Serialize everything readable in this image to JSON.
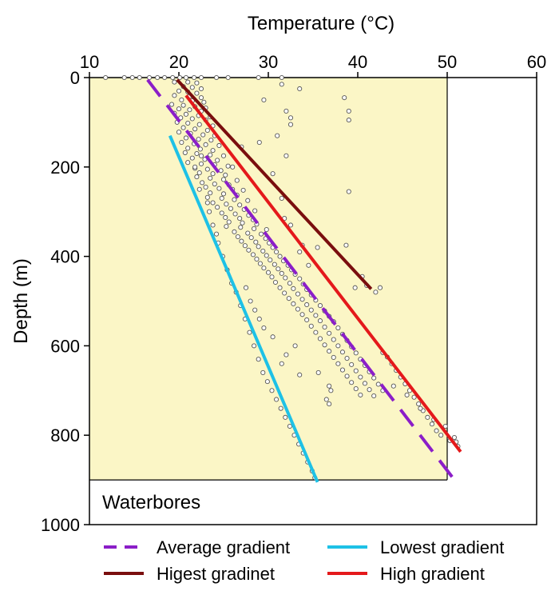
{
  "chart_data": {
    "type": "scatter",
    "title": "",
    "xlabel": "Temperature (°C)",
    "ylabel": "Depth (m)",
    "xlim": [
      10,
      60
    ],
    "ylim": [
      1000,
      0
    ],
    "x_axis_position": "top",
    "y_inverted": true,
    "x_ticks": [
      10,
      20,
      30,
      40,
      50,
      60
    ],
    "y_ticks": [
      0,
      200,
      400,
      600,
      800,
      1000
    ],
    "shaded_region": {
      "x": [
        10,
        50
      ],
      "y": [
        0,
        900
      ],
      "color": "#FBF6C6"
    },
    "annotation": "Waterbores",
    "grid": false,
    "legend_position": "bottom",
    "scatter": {
      "name": "",
      "color": "#555555",
      "points": [
        [
          11.8,
          0
        ],
        [
          13.9,
          0
        ],
        [
          14.8,
          0
        ],
        [
          15.6,
          0
        ],
        [
          16.7,
          0
        ],
        [
          17.6,
          0
        ],
        [
          18.4,
          0
        ],
        [
          19.3,
          0
        ],
        [
          20.1,
          0
        ],
        [
          20.8,
          0
        ],
        [
          21.7,
          0
        ],
        [
          22.5,
          0
        ],
        [
          24.2,
          0
        ],
        [
          25.5,
          0
        ],
        [
          28.9,
          0
        ],
        [
          31.5,
          0
        ],
        [
          19.5,
          10
        ],
        [
          21,
          10
        ],
        [
          22,
          12
        ],
        [
          20.5,
          20
        ],
        [
          21.5,
          22
        ],
        [
          22.5,
          25
        ],
        [
          20,
          30
        ],
        [
          21,
          32
        ],
        [
          22,
          35
        ],
        [
          19.5,
          40
        ],
        [
          21.2,
          42
        ],
        [
          22.5,
          45
        ],
        [
          20.3,
          50
        ],
        [
          21.5,
          52
        ],
        [
          22.8,
          55
        ],
        [
          19.2,
          60
        ],
        [
          20.5,
          62
        ],
        [
          21.8,
          65
        ],
        [
          23,
          68
        ],
        [
          20,
          70
        ],
        [
          21.2,
          72
        ],
        [
          22.5,
          75
        ],
        [
          19.5,
          80
        ],
        [
          20.8,
          82
        ],
        [
          22.2,
          85
        ],
        [
          23.5,
          88
        ],
        [
          20.2,
          90
        ],
        [
          21.5,
          92
        ],
        [
          23,
          95
        ],
        [
          19.8,
          100
        ],
        [
          21,
          102
        ],
        [
          22.3,
          105
        ],
        [
          23.8,
          108
        ],
        [
          20.5,
          112
        ],
        [
          21.8,
          115
        ],
        [
          23.2,
          118
        ],
        [
          20,
          122
        ],
        [
          21.3,
          125
        ],
        [
          22.7,
          128
        ],
        [
          24,
          130
        ],
        [
          20.8,
          135
        ],
        [
          22.2,
          138
        ],
        [
          23.6,
          140
        ],
        [
          20.3,
          145
        ],
        [
          21.7,
          148
        ],
        [
          23,
          150
        ],
        [
          24.5,
          152
        ],
        [
          21,
          158
        ],
        [
          22.4,
          160
        ],
        [
          23.8,
          163
        ],
        [
          20.7,
          168
        ],
        [
          22,
          170
        ],
        [
          23.5,
          173
        ],
        [
          25,
          175
        ],
        [
          21.5,
          180
        ],
        [
          22.9,
          183
        ],
        [
          24.3,
          185
        ],
        [
          21,
          190
        ],
        [
          22.5,
          193
        ],
        [
          24,
          195
        ],
        [
          25.5,
          198
        ],
        [
          21.8,
          203
        ],
        [
          23.2,
          205
        ],
        [
          24.7,
          208
        ],
        [
          22.3,
          213
        ],
        [
          23.8,
          215
        ],
        [
          25.2,
          218
        ],
        [
          22,
          222
        ],
        [
          23.5,
          225
        ],
        [
          25,
          228
        ],
        [
          26.5,
          230
        ],
        [
          22.6,
          235
        ],
        [
          24,
          238
        ],
        [
          25.6,
          240
        ],
        [
          23,
          245
        ],
        [
          24.5,
          248
        ],
        [
          26,
          250
        ],
        [
          27.2,
          252
        ],
        [
          23.5,
          258
        ],
        [
          25,
          260
        ],
        [
          26.5,
          263
        ],
        [
          23.2,
          268
        ],
        [
          24.8,
          270
        ],
        [
          26.2,
          273
        ],
        [
          27.7,
          275
        ],
        [
          23.8,
          280
        ],
        [
          25.3,
          283
        ],
        [
          26.8,
          285
        ],
        [
          24.3,
          290
        ],
        [
          25.8,
          293
        ],
        [
          27.3,
          295
        ],
        [
          28.5,
          298
        ],
        [
          24.8,
          303
        ],
        [
          26.3,
          305
        ],
        [
          27.8,
          308
        ],
        [
          25.2,
          313
        ],
        [
          26.8,
          315
        ],
        [
          28.3,
          318
        ],
        [
          25.6,
          323
        ],
        [
          27.1,
          325
        ],
        [
          28.7,
          328
        ],
        [
          25.3,
          333
        ],
        [
          26.9,
          335
        ],
        [
          28.4,
          338
        ],
        [
          29.8,
          340
        ],
        [
          26.2,
          345
        ],
        [
          27.7,
          348
        ],
        [
          29.2,
          350
        ],
        [
          26.6,
          356
        ],
        [
          28.1,
          358
        ],
        [
          29.7,
          360
        ],
        [
          27,
          366
        ],
        [
          28.6,
          368
        ],
        [
          30.1,
          370
        ],
        [
          27.4,
          376
        ],
        [
          28.9,
          378
        ],
        [
          30.5,
          380
        ],
        [
          27.8,
          386
        ],
        [
          29.4,
          388
        ],
        [
          30.9,
          390
        ],
        [
          28.3,
          396
        ],
        [
          29.8,
          398
        ],
        [
          31.3,
          400
        ],
        [
          28.7,
          406
        ],
        [
          30.2,
          408
        ],
        [
          31.7,
          410
        ],
        [
          29.1,
          416
        ],
        [
          30.7,
          418
        ],
        [
          32.2,
          420
        ],
        [
          29.5,
          426
        ],
        [
          31.1,
          428
        ],
        [
          32.6,
          430
        ],
        [
          30,
          436
        ],
        [
          31.5,
          438
        ],
        [
          33,
          440
        ],
        [
          30.4,
          446
        ],
        [
          31.9,
          448
        ],
        [
          33.5,
          450
        ],
        [
          30.8,
          458
        ],
        [
          32.4,
          460
        ],
        [
          33.9,
          462
        ],
        [
          31.3,
          470
        ],
        [
          32.8,
          472
        ],
        [
          34.3,
          474
        ],
        [
          31.8,
          482
        ],
        [
          33.3,
          484
        ],
        [
          34.8,
          486
        ],
        [
          32.3,
          494
        ],
        [
          33.8,
          496
        ],
        [
          35.3,
          498
        ],
        [
          32.8,
          506
        ],
        [
          34.3,
          508
        ],
        [
          35.8,
          510
        ],
        [
          33.3,
          518
        ],
        [
          34.8,
          520
        ],
        [
          36.3,
          522
        ],
        [
          33.8,
          530
        ],
        [
          35.3,
          532
        ],
        [
          36.8,
          534
        ],
        [
          34.3,
          542
        ],
        [
          35.8,
          544
        ],
        [
          37.3,
          546
        ],
        [
          34.8,
          556
        ],
        [
          36.3,
          558
        ],
        [
          37.8,
          560
        ],
        [
          35.3,
          570
        ],
        [
          36.8,
          572
        ],
        [
          38.3,
          574
        ],
        [
          35.8,
          584
        ],
        [
          37.3,
          586
        ],
        [
          38.8,
          588
        ],
        [
          36.3,
          598
        ],
        [
          37.8,
          600
        ],
        [
          39.3,
          602
        ],
        [
          36.8,
          612
        ],
        [
          38.3,
          614
        ],
        [
          39.8,
          616
        ],
        [
          37.3,
          626
        ],
        [
          38.8,
          628
        ],
        [
          40.3,
          630
        ],
        [
          37.8,
          640
        ],
        [
          39.3,
          642
        ],
        [
          40.8,
          644
        ],
        [
          38.3,
          654
        ],
        [
          39.8,
          656
        ],
        [
          41.3,
          658
        ],
        [
          38.8,
          668
        ],
        [
          40.3,
          670
        ],
        [
          41.8,
          672
        ],
        [
          39.3,
          682
        ],
        [
          40.8,
          684
        ],
        [
          42.3,
          686
        ],
        [
          39.8,
          696
        ],
        [
          41.3,
          698
        ],
        [
          42.8,
          700
        ],
        [
          40.3,
          710
        ],
        [
          41.8,
          712
        ],
        [
          36.5,
          720
        ],
        [
          36.8,
          730
        ],
        [
          33.5,
          665
        ],
        [
          35.6,
          660
        ],
        [
          36.8,
          690
        ],
        [
          37,
          700
        ],
        [
          31.5,
          640
        ],
        [
          32,
          620
        ],
        [
          33,
          600
        ],
        [
          30.5,
          580
        ],
        [
          29.5,
          560
        ],
        [
          29,
          540
        ],
        [
          28.5,
          520
        ],
        [
          28,
          500
        ],
        [
          27.5,
          470
        ],
        [
          31.5,
          15
        ],
        [
          33.5,
          25
        ],
        [
          38.5,
          45
        ],
        [
          29.5,
          50
        ],
        [
          32,
          75
        ],
        [
          39,
          75
        ],
        [
          39,
          95
        ],
        [
          32.5,
          90
        ],
        [
          32.5,
          105
        ],
        [
          31,
          130
        ],
        [
          39,
          255
        ],
        [
          29,
          145
        ],
        [
          27,
          155
        ],
        [
          26,
          200
        ],
        [
          32,
          175
        ],
        [
          30.5,
          215
        ],
        [
          31.5,
          270
        ],
        [
          32.5,
          330
        ],
        [
          31.8,
          315
        ],
        [
          33.8,
          375
        ],
        [
          35.5,
          380
        ],
        [
          33.5,
          390
        ],
        [
          34.5,
          420
        ],
        [
          38.7,
          375
        ],
        [
          40.5,
          445
        ],
        [
          39.7,
          470
        ],
        [
          41,
          465
        ],
        [
          42,
          480
        ],
        [
          42.5,
          470
        ],
        [
          22.5,
          175
        ],
        [
          22.3,
          250
        ],
        [
          21.8,
          200
        ],
        [
          23.2,
          280
        ],
        [
          23.4,
          300
        ],
        [
          23.8,
          330
        ],
        [
          24.2,
          350
        ],
        [
          24.4,
          370
        ],
        [
          24.9,
          400
        ],
        [
          25.4,
          430
        ],
        [
          25.9,
          460
        ],
        [
          26.4,
          480
        ],
        [
          26.9,
          510
        ],
        [
          27.4,
          540
        ],
        [
          27.9,
          570
        ],
        [
          28.4,
          600
        ],
        [
          28.9,
          630
        ],
        [
          29.4,
          660
        ],
        [
          29.9,
          680
        ],
        [
          30.4,
          700
        ],
        [
          30.9,
          720
        ],
        [
          31.4,
          740
        ],
        [
          31.9,
          760
        ],
        [
          32.4,
          780
        ],
        [
          32.9,
          800
        ],
        [
          33.4,
          820
        ],
        [
          33.9,
          840
        ],
        [
          34.4,
          860
        ],
        [
          34.9,
          880
        ],
        [
          35.2,
          895
        ],
        [
          42.8,
          615
        ],
        [
          43.3,
          625
        ],
        [
          43.8,
          640
        ],
        [
          44.3,
          655
        ],
        [
          44.8,
          670
        ],
        [
          45.3,
          685
        ],
        [
          45.8,
          700
        ],
        [
          46.3,
          715
        ],
        [
          46.8,
          730
        ],
        [
          47.3,
          745
        ],
        [
          47.8,
          760
        ],
        [
          48.3,
          775
        ],
        [
          48.8,
          790
        ],
        [
          49.3,
          800
        ],
        [
          50.3,
          812
        ],
        [
          50.8,
          805
        ],
        [
          51,
          815
        ],
        [
          51.2,
          825
        ],
        [
          49.8,
          780
        ],
        [
          48.5,
          765
        ],
        [
          47,
          740
        ],
        [
          45.5,
          710
        ],
        [
          44,
          690
        ]
      ]
    },
    "series": [
      {
        "name": "Average gradient",
        "style": "dashed",
        "color": "#8B1EC8",
        "x": [
          16.5,
          51.0
        ],
        "y": [
          5,
          905
        ]
      },
      {
        "name": "Lowest gradient",
        "style": "solid",
        "color": "#1EC1E6",
        "x": [
          19.0,
          35.5
        ],
        "y": [
          130,
          905
        ]
      },
      {
        "name": "Higest gradinet",
        "style": "solid",
        "color": "#7A0E0E",
        "x": [
          19.8,
          41.5
        ],
        "y": [
          5,
          473
        ]
      },
      {
        "name": "High gradient",
        "style": "solid",
        "color": "#E4191B",
        "x": [
          20.8,
          51.5
        ],
        "y": [
          40,
          837
        ]
      }
    ]
  }
}
